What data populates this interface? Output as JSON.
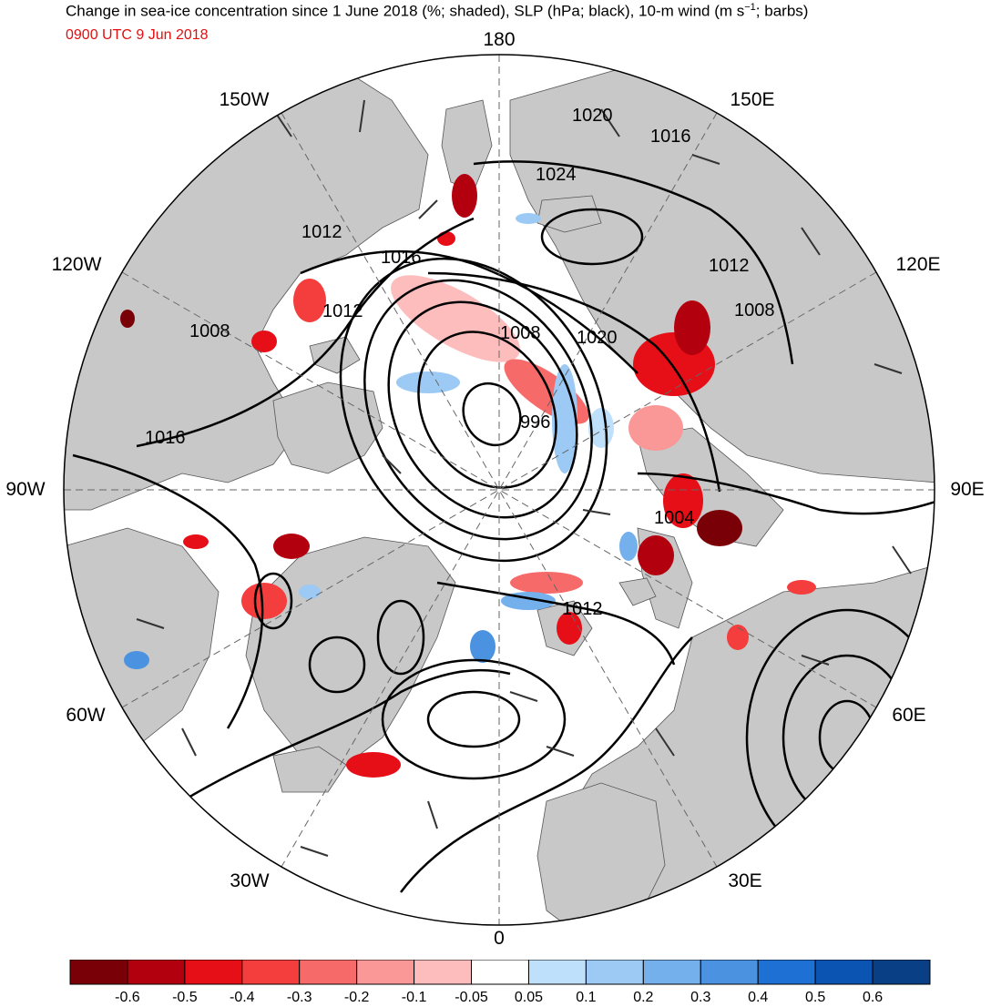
{
  "title": {
    "main": "Change in sea-ice concentration since 1 June 2018 (%; shaded), SLP (hPa; black), 10-m wind (m s",
    "exp": "−1",
    "tail": "; barbs)",
    "valid_time": "0900 UTC 9 Jun 2018"
  },
  "longitude_labels": {
    "n180": "180",
    "w150": "150W",
    "e150": "150E",
    "w120": "120W",
    "e120": "120E",
    "w90": "90W",
    "e90": "90E",
    "w60": "60W",
    "e60": "60E",
    "w30": "30W",
    "e30": "30E",
    "s0": "0"
  },
  "slp_contour_labels": [
    {
      "text": "1020"
    },
    {
      "text": "1016"
    },
    {
      "text": "1024"
    },
    {
      "text": "1012"
    },
    {
      "text": "1016"
    },
    {
      "text": "1012"
    },
    {
      "text": "1008"
    },
    {
      "text": "1020"
    },
    {
      "text": "1012"
    },
    {
      "text": "1008"
    },
    {
      "text": "1008"
    },
    {
      "text": "996"
    },
    {
      "text": "1016"
    },
    {
      "text": "1004"
    },
    {
      "text": "1012"
    }
  ],
  "colorbar": {
    "colors": [
      "#7a0008",
      "#b3000f",
      "#e60f17",
      "#f43d3d",
      "#f76a6a",
      "#fa9898",
      "#fdbdbd",
      "#ffffff",
      "#bfe0fb",
      "#9ccaf4",
      "#74b0ec",
      "#4b93e0",
      "#1f70d4",
      "#0c54b1",
      "#083f85"
    ],
    "labels": [
      "-0.6",
      "-0.5",
      "-0.4",
      "-0.3",
      "-0.2",
      "-0.1",
      "-0.05",
      "0.05",
      "0.1",
      "0.2",
      "0.3",
      "0.4",
      "0.5",
      "0.6"
    ]
  },
  "colors": {
    "land": "#c8c8c8",
    "ocean": "#ffffff",
    "contour": "#000000",
    "decrease": "#e60f17",
    "increase": "#4b93e0"
  }
}
